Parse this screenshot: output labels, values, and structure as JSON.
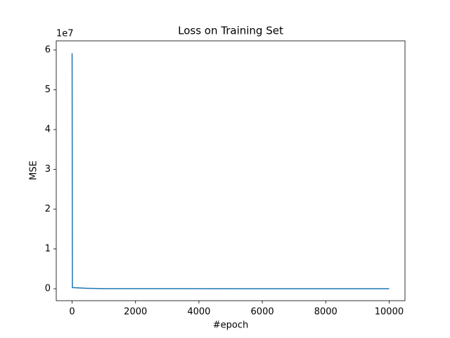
{
  "chart_data": {
    "type": "line",
    "title": "Loss on Training Set",
    "x_label": "#epoch",
    "y_label": "MSE",
    "y_offset": "1e7",
    "series": [
      {
        "color": "#1f77b4",
        "x": [
          0,
          10,
          500,
          1000,
          10000
        ],
        "values": [
          5.92,
          0.03,
          0.01,
          0.003,
          0.001
        ]
      }
    ],
    "xlim": [
      -500,
      10500
    ],
    "xticks": [
      0,
      2000,
      4000,
      6000,
      8000,
      10000
    ],
    "ylim": [
      -0.3,
      6.23
    ],
    "yticks": [
      0,
      1,
      2,
      3,
      4,
      5,
      6
    ],
    "grid": false
  }
}
